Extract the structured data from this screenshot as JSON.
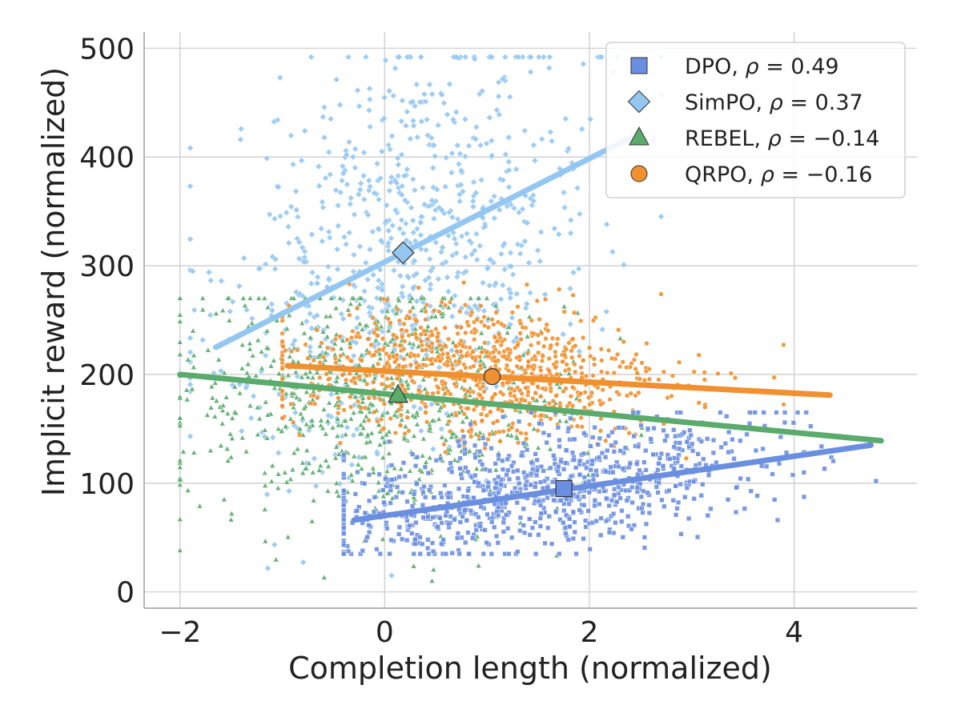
{
  "chart_data": {
    "type": "scatter",
    "title": "",
    "xlabel": "Completion length (normalized)",
    "ylabel": "Implicit reward (normalized)",
    "xlim": [
      -2.35,
      5.2
    ],
    "ylim": [
      -15,
      515
    ],
    "xticks": [
      -2,
      0,
      2,
      4
    ],
    "xtick_labels": [
      "−2",
      "0",
      "2",
      "4"
    ],
    "yticks": [
      0,
      100,
      200,
      300,
      400,
      500
    ],
    "ytick_labels": [
      "0",
      "100",
      "200",
      "300",
      "400",
      "500"
    ],
    "grid": true,
    "legend_position": "top-right",
    "series": [
      {
        "name": "DPO",
        "rho": "0.49",
        "legend_label": "DPO, ",
        "legend_math": "ρ = 0.49",
        "marker": "square",
        "color": "#6b8fe0",
        "line_color": "#6b8fe0",
        "centroid": {
          "x": 1.75,
          "y": 95
        },
        "fit": {
          "x0": -0.3,
          "y0": 66,
          "x1": 4.75,
          "y1": 135
        },
        "cloud": {
          "n": 900,
          "x_mean": 1.5,
          "x_sd": 1.1,
          "x_min": -0.4,
          "x_max": 4.8,
          "y_mean": 95,
          "y_sd": 28,
          "y_min": 35,
          "y_max": 165,
          "slope": 13.5
        }
      },
      {
        "name": "SimPO",
        "rho": "0.37",
        "legend_label": "SimPO, ",
        "legend_math": "ρ = 0.37",
        "marker": "diamond",
        "color": "#93c7f2",
        "line_color": "#93c7f2",
        "centroid": {
          "x": 0.18,
          "y": 312
        },
        "fit": {
          "x0": -1.65,
          "y0": 225,
          "x1": 2.45,
          "y1": 420
        },
        "cloud": {
          "n": 800,
          "x_mean": 0.25,
          "x_sd": 0.9,
          "x_min": -1.9,
          "x_max": 2.7,
          "y_mean": 320,
          "y_sd": 95,
          "y_min": 15,
          "y_max": 492,
          "slope": 45
        }
      },
      {
        "name": "REBEL",
        "rho": "−0.14",
        "legend_label": "REBEL, ",
        "legend_math": "ρ = −0.14",
        "marker": "triangle",
        "color": "#5aab6c",
        "line_color": "#5aab6c",
        "centroid": {
          "x": 0.13,
          "y": 181
        },
        "fit": {
          "x0": -2.0,
          "y0": 200,
          "x1": 4.85,
          "y1": 139
        },
        "cloud": {
          "n": 700,
          "x_mean": -0.1,
          "x_sd": 1.0,
          "x_min": -2.0,
          "x_max": 4.9,
          "y_mean": 175,
          "y_sd": 55,
          "y_min": 10,
          "y_max": 270,
          "slope": -9
        }
      },
      {
        "name": "QRPO",
        "rho": "−0.16",
        "legend_label": "QRPO, ",
        "legend_math": "ρ = −0.16",
        "marker": "circle",
        "color": "#f0902e",
        "line_color": "#f0902e",
        "centroid": {
          "x": 1.05,
          "y": 198
        },
        "fit": {
          "x0": -0.95,
          "y0": 208,
          "x1": 4.35,
          "y1": 181
        },
        "cloud": {
          "n": 900,
          "x_mean": 0.9,
          "x_sd": 0.95,
          "x_min": -1.0,
          "x_max": 4.3,
          "y_mean": 200,
          "y_sd": 30,
          "y_min": 110,
          "y_max": 285,
          "slope": -5
        }
      }
    ]
  }
}
